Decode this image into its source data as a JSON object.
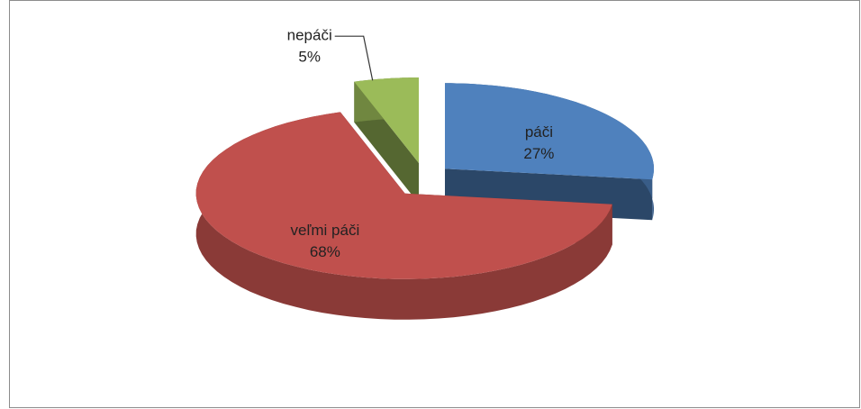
{
  "chart_data": {
    "type": "pie3d",
    "categories": [
      "páči",
      "veľmi páči",
      "nepáči"
    ],
    "values": [
      27,
      68,
      5
    ],
    "value_labels": [
      "27%",
      "68%",
      "5%"
    ],
    "colors": [
      "#4f81bd",
      "#c0504d",
      "#9bbb59"
    ]
  }
}
